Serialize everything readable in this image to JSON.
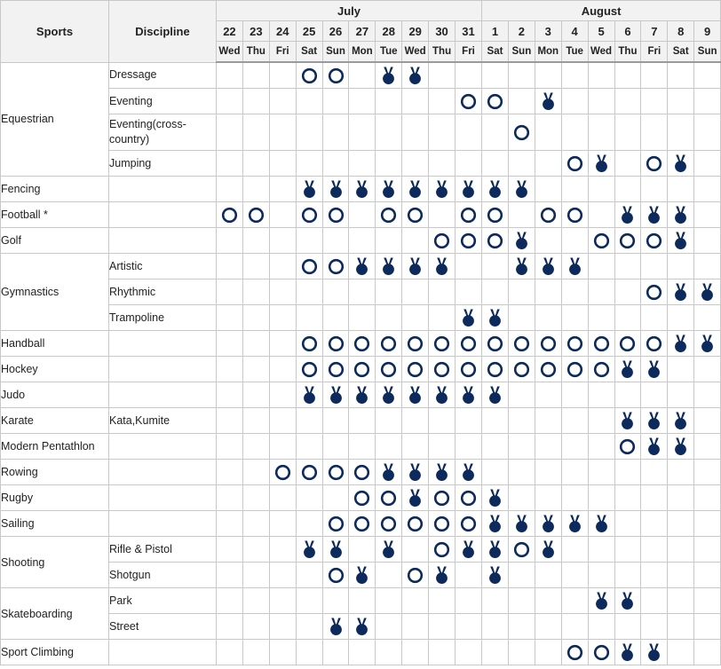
{
  "header": {
    "sports_label": "Sports",
    "discipline_label": "Discipline",
    "months": [
      {
        "label": "July",
        "span": 10
      },
      {
        "label": "August",
        "span": 9
      }
    ],
    "dates": [
      "22",
      "23",
      "24",
      "25",
      "26",
      "27",
      "28",
      "29",
      "30",
      "31",
      "1",
      "2",
      "3",
      "4",
      "5",
      "6",
      "7",
      "8",
      "9"
    ],
    "weekdays": [
      "Wed",
      "Thu",
      "Fri",
      "Sat",
      "Sun",
      "Mon",
      "Tue",
      "Wed",
      "Thu",
      "Fri",
      "Sat",
      "Sun",
      "Mon",
      "Tue",
      "Wed",
      "Thu",
      "Fri",
      "Sat",
      "Sun"
    ]
  },
  "legend": {
    "event_symbol": "circle-outline-icon",
    "final_symbol": "medal-icon",
    "color": "#0d2a5c"
  },
  "rows": [
    {
      "sport": "Equestrian",
      "sport_rowspan": 4,
      "discipline": "Dressage",
      "cells": [
        "",
        "",
        "",
        "E",
        "E",
        "",
        "M",
        "M",
        "",
        "",
        "",
        "",
        "",
        "",
        "",
        "",
        "",
        "",
        ""
      ]
    },
    {
      "discipline": "Eventing",
      "cells": [
        "",
        "",
        "",
        "",
        "",
        "",
        "",
        "",
        "",
        "E",
        "E",
        "",
        "M",
        "",
        "",
        "",
        "",
        "",
        ""
      ]
    },
    {
      "discipline": "Eventing(cross-country)",
      "tall": true,
      "cells": [
        "",
        "",
        "",
        "",
        "",
        "",
        "",
        "",
        "",
        "",
        "",
        "E",
        "",
        "",
        "",
        "",
        "",
        "",
        ""
      ]
    },
    {
      "discipline": "Jumping",
      "cells": [
        "",
        "",
        "",
        "",
        "",
        "",
        "",
        "",
        "",
        "",
        "",
        "",
        "",
        "E",
        "M",
        "",
        "E",
        "M",
        ""
      ]
    },
    {
      "sport": "Fencing",
      "sport_rowspan": 1,
      "discipline": "",
      "cells": [
        "",
        "",
        "",
        "M",
        "M",
        "M",
        "M",
        "M",
        "M",
        "M",
        "M",
        "M",
        "",
        "",
        "",
        "",
        "",
        "",
        ""
      ]
    },
    {
      "sport": "Football *",
      "sport_rowspan": 1,
      "discipline": "",
      "cells": [
        "E",
        "E",
        "",
        "E",
        "E",
        "",
        "E",
        "E",
        "",
        "E",
        "E",
        "",
        "E",
        "E",
        "",
        "M",
        "M",
        "M",
        ""
      ]
    },
    {
      "sport": "Golf",
      "sport_rowspan": 1,
      "discipline": "",
      "cells": [
        "",
        "",
        "",
        "",
        "",
        "",
        "",
        "",
        "E",
        "E",
        "E",
        "M",
        "",
        "",
        "E",
        "E",
        "E",
        "M",
        ""
      ]
    },
    {
      "sport": "Gymnastics",
      "sport_rowspan": 3,
      "discipline": "Artistic",
      "cells": [
        "",
        "",
        "",
        "E",
        "E",
        "M",
        "M",
        "M",
        "M",
        "",
        "",
        "M",
        "M",
        "M",
        "",
        "",
        "",
        "",
        ""
      ]
    },
    {
      "discipline": "Rhythmic",
      "cells": [
        "",
        "",
        "",
        "",
        "",
        "",
        "",
        "",
        "",
        "",
        "",
        "",
        "",
        "",
        "",
        "",
        "E",
        "M",
        "M"
      ]
    },
    {
      "discipline": "Trampoline",
      "cells": [
        "",
        "",
        "",
        "",
        "",
        "",
        "",
        "",
        "",
        "M",
        "M",
        "",
        "",
        "",
        "",
        "",
        "",
        "",
        ""
      ]
    },
    {
      "sport": "Handball",
      "sport_rowspan": 1,
      "discipline": "",
      "cells": [
        "",
        "",
        "",
        "E",
        "E",
        "E",
        "E",
        "E",
        "E",
        "E",
        "E",
        "E",
        "E",
        "E",
        "E",
        "E",
        "E",
        "M",
        "M"
      ]
    },
    {
      "sport": "Hockey",
      "sport_rowspan": 1,
      "discipline": "",
      "cells": [
        "",
        "",
        "",
        "E",
        "E",
        "E",
        "E",
        "E",
        "E",
        "E",
        "E",
        "E",
        "E",
        "E",
        "E",
        "M",
        "M",
        "",
        ""
      ]
    },
    {
      "sport": "Judo",
      "sport_rowspan": 1,
      "discipline": "",
      "cells": [
        "",
        "",
        "",
        "M",
        "M",
        "M",
        "M",
        "M",
        "M",
        "M",
        "M",
        "",
        "",
        "",
        "",
        "",
        "",
        "",
        ""
      ]
    },
    {
      "sport": "Karate",
      "sport_rowspan": 1,
      "discipline": "Kata,Kumite",
      "cells": [
        "",
        "",
        "",
        "",
        "",
        "",
        "",
        "",
        "",
        "",
        "",
        "",
        "",
        "",
        "",
        "M",
        "M",
        "M",
        ""
      ]
    },
    {
      "sport": "Modern Pentathlon",
      "sport_rowspan": 1,
      "discipline": "",
      "cells": [
        "",
        "",
        "",
        "",
        "",
        "",
        "",
        "",
        "",
        "",
        "",
        "",
        "",
        "",
        "",
        "E",
        "M",
        "M",
        ""
      ]
    },
    {
      "sport": "Rowing",
      "sport_rowspan": 1,
      "discipline": "",
      "cells": [
        "",
        "",
        "E",
        "E",
        "E",
        "E",
        "M",
        "M",
        "M",
        "M",
        "",
        "",
        "",
        "",
        "",
        "",
        "",
        "",
        ""
      ]
    },
    {
      "sport": "Rugby",
      "sport_rowspan": 1,
      "discipline": "",
      "cells": [
        "",
        "",
        "",
        "",
        "",
        "E",
        "E",
        "M",
        "E",
        "E",
        "M",
        "",
        "",
        "",
        "",
        "",
        "",
        "",
        ""
      ]
    },
    {
      "sport": "Sailing",
      "sport_rowspan": 1,
      "discipline": "",
      "cells": [
        "",
        "",
        "",
        "",
        "E",
        "E",
        "E",
        "E",
        "E",
        "E",
        "M",
        "M",
        "M",
        "M",
        "M",
        "",
        "",
        "",
        ""
      ]
    },
    {
      "sport": "Shooting",
      "sport_rowspan": 2,
      "discipline": "Rifle & Pistol",
      "cells": [
        "",
        "",
        "",
        "M",
        "M",
        "",
        "M",
        "",
        "E",
        "M",
        "M",
        "E",
        "M",
        "",
        "",
        "",
        "",
        "",
        ""
      ]
    },
    {
      "discipline": "Shotgun",
      "cells": [
        "",
        "",
        "",
        "",
        "E",
        "M",
        "",
        "E",
        "M",
        "",
        "M",
        "",
        "",
        "",
        "",
        "",
        "",
        "",
        ""
      ]
    },
    {
      "sport": "Skateboarding",
      "sport_rowspan": 2,
      "discipline": "Park",
      "cells": [
        "",
        "",
        "",
        "",
        "",
        "",
        "",
        "",
        "",
        "",
        "",
        "",
        "",
        "",
        "M",
        "M",
        "",
        "",
        ""
      ]
    },
    {
      "discipline": "Street",
      "cells": [
        "",
        "",
        "",
        "",
        "M",
        "M",
        "",
        "",
        "",
        "",
        "",
        "",
        "",
        "",
        "",
        "",
        "",
        "",
        ""
      ]
    },
    {
      "sport": "Sport Climbing",
      "sport_rowspan": 1,
      "discipline": "",
      "cells": [
        "",
        "",
        "",
        "",
        "",
        "",
        "",
        "",
        "",
        "",
        "",
        "",
        "",
        "E",
        "E",
        "M",
        "M",
        "",
        ""
      ]
    }
  ]
}
